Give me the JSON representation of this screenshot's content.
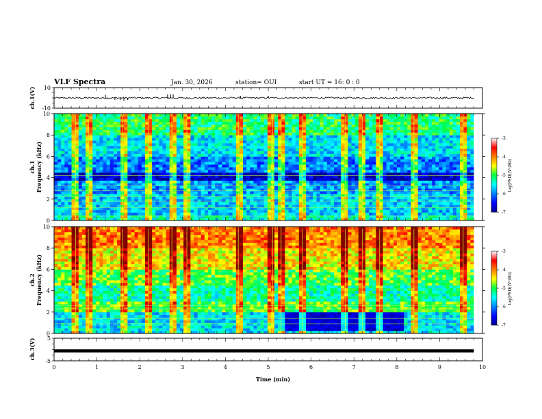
{
  "header": {
    "title": "VLF Spectra",
    "date": "Jan. 30, 2026",
    "station": "station= OUI",
    "start": "start  UT =   16: 0  : 0"
  },
  "chart_data": [
    {
      "type": "line",
      "name": "ch1-waveform",
      "ylabel": "ch.1(V)",
      "xlim": [
        0,
        10
      ],
      "ylim": [
        -10,
        10
      ],
      "yticks": [
        "10",
        "-10"
      ],
      "data_end_min": 9.8,
      "baseline": 0,
      "spikes": [
        {
          "x": 1.2,
          "y": 3
        },
        {
          "x": 1.42,
          "y": -2
        },
        {
          "x": 1.55,
          "y": -2
        },
        {
          "x": 1.63,
          "y": -3
        },
        {
          "x": 1.72,
          "y": -2
        },
        {
          "x": 2.65,
          "y": 3.5
        },
        {
          "x": 2.72,
          "y": 3.5
        },
        {
          "x": 2.78,
          "y": 3.5
        },
        {
          "x": 4.35,
          "y": 2
        },
        {
          "x": 5.0,
          "y": 2
        }
      ]
    },
    {
      "type": "heatmap",
      "name": "ch1-spectrogram",
      "ylabel": "ch.1\nFrequency (kHz)",
      "xlim": [
        0,
        10
      ],
      "ylim": [
        0,
        10
      ],
      "yticks": [
        "0",
        "2",
        "4",
        "6",
        "8",
        "10"
      ],
      "data_end_min": 9.8,
      "colorbar_label": "log(PSD)(V²/Hz)",
      "colorbar_ticks": [
        "-3",
        "-4",
        "-5",
        "-6",
        "-7"
      ],
      "clim": [
        -7,
        -3
      ],
      "bands": [
        {
          "f": [
            8,
            10
          ],
          "level": -5.1
        },
        {
          "f": [
            6,
            8
          ],
          "level": -5.6
        },
        {
          "f": [
            4.6,
            6
          ],
          "level": -6.0
        },
        {
          "f": [
            3.7,
            4.6
          ],
          "level": -6.8
        },
        {
          "f": [
            2.5,
            3.7
          ],
          "level": -5.9
        },
        {
          "f": [
            0.5,
            2.5
          ],
          "level": -5.7
        },
        {
          "f": [
            0,
            0.5
          ],
          "level": -5.4
        }
      ],
      "bursts_min": [
        0.5,
        0.8,
        1.6,
        2.2,
        2.75,
        3.1,
        4.3,
        5.1,
        5.3,
        5.8,
        6.8,
        7.2,
        7.6,
        8.4,
        9.55
      ],
      "lines_khz": [
        0.4,
        1.2,
        1.8,
        2.25,
        2.8,
        3.25,
        4.2
      ]
    },
    {
      "type": "heatmap",
      "name": "ch2-spectrogram",
      "ylabel": "ch.2\nFrequency (kHz)",
      "xlim": [
        0,
        10
      ],
      "ylim": [
        0,
        10
      ],
      "yticks": [
        "0",
        "2",
        "4",
        "6",
        "8",
        "10"
      ],
      "data_end_min": 9.8,
      "colorbar_label": "log(PSD)(V²/Hz)",
      "colorbar_ticks": [
        "-3",
        "-4",
        "-5",
        "-6",
        "-7"
      ],
      "clim": [
        -7,
        -3
      ],
      "bands": [
        {
          "f": [
            8,
            10
          ],
          "level": -4.0
        },
        {
          "f": [
            6,
            8
          ],
          "level": -4.4
        },
        {
          "f": [
            4.5,
            6
          ],
          "level": -4.9
        },
        {
          "f": [
            3,
            4.5
          ],
          "level": -5.3
        },
        {
          "f": [
            2,
            3
          ],
          "level": -4.9
        },
        {
          "f": [
            0,
            2
          ],
          "level": -5.6
        }
      ],
      "quiet_region": {
        "t": [
          5.2,
          8.2
        ],
        "f": [
          0.2,
          2.0
        ],
        "level": -6.7
      },
      "bursts_min": [
        0.5,
        0.8,
        1.6,
        2.2,
        2.75,
        3.1,
        4.3,
        5.1,
        5.3,
        5.8,
        6.8,
        7.2,
        7.6,
        8.4,
        9.55
      ],
      "lines_khz": [
        0.9,
        1.4,
        2.3,
        2.6
      ]
    },
    {
      "type": "line",
      "name": "ch3-waveform",
      "ylabel": "ch.3(V)",
      "xlabel": "Time (min)",
      "xlim": [
        0,
        10
      ],
      "ylim": [
        -5,
        5
      ],
      "yticks": [
        "5",
        "0",
        "-5"
      ],
      "xticks": [
        "0",
        "1",
        "2",
        "3",
        "4",
        "5",
        "6",
        "7",
        "8",
        "9",
        "10"
      ],
      "data_end_min": 9.8,
      "level": 0
    }
  ]
}
